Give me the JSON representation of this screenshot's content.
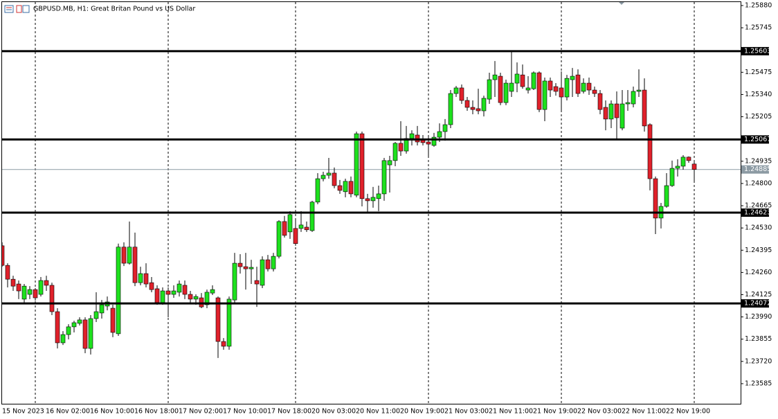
{
  "chart_data": {
    "type": "candlestick",
    "title": "GBPUSD.MB, H1:  Great Britan Pound vs US Dollar",
    "up_color": "#1ee11e",
    "down_color": "#e0212b",
    "wick_color": "#000000",
    "level_color": "#000000",
    "last_price_color": "#8c9aa3",
    "categories": [
      "15 Nov 2023",
      null,
      null,
      null,
      null,
      null,
      null,
      null,
      "16 Nov 02:00",
      null,
      null,
      null,
      null,
      null,
      null,
      null,
      "16 Nov 10:00",
      null,
      null,
      null,
      null,
      null,
      null,
      null,
      "16 Nov 18:00",
      null,
      null,
      null,
      null,
      null,
      null,
      null,
      "17 Nov 02:00",
      null,
      null,
      null,
      null,
      null,
      null,
      null,
      "17 Nov 10:00",
      null,
      null,
      null,
      null,
      null,
      null,
      null,
      "17 Nov 18:00",
      null,
      null,
      null,
      null,
      null,
      null,
      null,
      "20 Nov 03:00",
      null,
      null,
      null,
      null,
      null,
      null,
      null,
      "20 Nov 11:00",
      null,
      null,
      null,
      null,
      null,
      null,
      null,
      "20 Nov 19:00",
      null,
      null,
      null,
      null,
      null,
      null,
      null,
      "21 Nov 03:00",
      null,
      null,
      null,
      null,
      null,
      null,
      null,
      "21 Nov 11:00",
      null,
      null,
      null,
      null,
      null,
      null,
      null,
      "21 Nov 19:00",
      null,
      null,
      null,
      null,
      null,
      null,
      null,
      "22 Nov 03:00",
      null,
      null,
      null,
      null,
      null,
      null,
      null,
      "22 Nov 11:00",
      null,
      null,
      null,
      null,
      null,
      null,
      null,
      "22 Nov 19:00",
      null,
      null,
      null,
      null,
      null
    ],
    "open": [
      1.24422,
      1.24303,
      1.24219,
      1.2419,
      1.24098,
      1.24127,
      1.24156,
      1.24127,
      1.24211,
      1.24182,
      1.24022,
      1.23833,
      1.23883,
      1.2393,
      1.23951,
      1.23972,
      1.23799,
      1.2398,
      1.24014,
      1.24056,
      1.24043,
      1.23888,
      1.24414,
      1.24316,
      1.24414,
      1.24198,
      1.24253,
      1.24198,
      1.24161,
      1.24077,
      1.24148,
      1.24127,
      1.2414,
      1.24182,
      1.24127,
      1.24098,
      1.24106,
      1.24064,
      1.24135,
      1.24106,
      1.23841,
      1.23812,
      1.24093,
      1.24316,
      1.24295,
      1.24282,
      1.24211,
      1.24182,
      1.24337,
      1.24282,
      1.24358,
      1.24569,
      1.24506,
      1.24527,
      1.24527,
      1.24535,
      1.24514,
      1.24687,
      1.24829,
      1.2485,
      1.24863,
      1.24787,
      1.2475,
      1.24813,
      1.24729,
      1.25102,
      1.24708,
      1.24695,
      1.24708,
      1.24737,
      1.24913,
      1.24939,
      1.25044,
      1.24997,
      1.25073,
      1.25094,
      1.25065,
      1.25052,
      1.25031,
      1.25081,
      1.25115,
      1.25157,
      1.25346,
      1.2538,
      1.25304,
      1.25262,
      1.25254,
      1.25241,
      1.25312,
      1.2543,
      1.25451,
      1.25291,
      1.25359,
      1.25409,
      1.25459,
      1.25367,
      1.25375,
      1.25472,
      1.25249,
      1.25422,
      1.25388,
      1.2538,
      1.25325,
      1.2543,
      1.25459,
      1.25359,
      1.25409,
      1.25367,
      1.25346,
      1.25262,
      1.25191,
      1.25283,
      1.25136,
      1.25283,
      1.25283,
      1.25359,
      1.25367,
      1.25157,
      1.24829,
      1.2459,
      1.24661,
      1.24787,
      1.24892,
      1.24905,
      1.2496,
      1.24918
    ],
    "high": [
      1.24443,
      1.24316,
      1.2424,
      1.24211,
      1.2419,
      1.24177,
      1.24165,
      1.24232,
      1.2424,
      1.24198,
      1.24043,
      1.23904,
      1.23946,
      1.23967,
      1.23988,
      1.23988,
      1.24001,
      1.2414,
      1.24093,
      1.24114,
      1.24064,
      1.24435,
      1.24443,
      1.24569,
      1.24502,
      1.24295,
      1.24316,
      1.24232,
      1.24182,
      1.24169,
      1.24169,
      1.24182,
      1.24211,
      1.24211,
      1.24148,
      1.24127,
      1.24135,
      1.24156,
      1.24182,
      1.24114,
      1.23862,
      1.24114,
      1.24379,
      1.24371,
      1.24379,
      1.24337,
      1.24295,
      1.24358,
      1.24366,
      1.24379,
      1.24577,
      1.24603,
      1.24632,
      1.24577,
      1.24632,
      1.24569,
      1.24695,
      1.24863,
      1.24871,
      1.24955,
      1.24897,
      1.24821,
      1.24829,
      1.24842,
      1.25115,
      1.25115,
      1.24737,
      1.24779,
      1.24787,
      1.24955,
      1.24968,
      1.25052,
      1.25178,
      1.25149,
      1.25123,
      1.25149,
      1.25094,
      1.25081,
      1.25107,
      1.25165,
      1.25191,
      1.25367,
      1.25392,
      1.25401,
      1.25325,
      1.25304,
      1.25375,
      1.25333,
      1.25472,
      1.25543,
      1.25472,
      1.2543,
      1.25602,
      1.25535,
      1.25522,
      1.25451,
      1.2548,
      1.2548,
      1.25443,
      1.25443,
      1.25409,
      1.2548,
      1.25459,
      1.25501,
      1.25493,
      1.25438,
      1.25443,
      1.25388,
      1.25367,
      1.25304,
      1.25304,
      1.25359,
      1.25367,
      1.25367,
      1.25388,
      1.25493,
      1.25438,
      1.25165,
      1.24842,
      1.24682,
      1.24863,
      1.24939,
      1.24947,
      1.24972,
      1.24964,
      1.24939
    ],
    "low": [
      1.24295,
      1.24169,
      1.24148,
      1.24098,
      1.24077,
      1.24098,
      1.24089,
      1.24114,
      1.24148,
      1.24001,
      1.23799,
      1.2382,
      1.23854,
      1.23896,
      1.23938,
      1.2377,
      1.23762,
      1.23959,
      1.2398,
      1.2403,
      1.23867,
      1.23875,
      1.24299,
      1.24308,
      1.24177,
      1.24182,
      1.24169,
      1.2414,
      1.24064,
      1.24064,
      1.23988,
      1.24106,
      1.24114,
      1.24098,
      1.24072,
      1.24064,
      1.24043,
      1.24043,
      1.24123,
      1.23741,
      1.23791,
      1.23791,
      1.24077,
      1.24253,
      1.24156,
      1.2419,
      1.24051,
      1.24165,
      1.24266,
      1.24266,
      1.24345,
      1.24472,
      1.24464,
      1.24422,
      1.24506,
      1.24506,
      1.24506,
      1.24674,
      1.24813,
      1.24829,
      1.24771,
      1.24737,
      1.24716,
      1.24716,
      1.24716,
      1.24661,
      1.24624,
      1.24653,
      1.24632,
      1.24695,
      1.24745,
      1.24905,
      1.24968,
      1.24981,
      1.25031,
      1.25031,
      1.25031,
      1.24955,
      1.25023,
      1.25052,
      1.2506,
      1.25136,
      1.25325,
      1.25283,
      1.25241,
      1.2522,
      1.2522,
      1.25207,
      1.25283,
      1.25325,
      1.25275,
      1.25275,
      1.25325,
      1.25354,
      1.25375,
      1.25346,
      1.25367,
      1.25233,
      1.25178,
      1.25325,
      1.25333,
      1.25241,
      1.25304,
      1.25325,
      1.25325,
      1.25346,
      1.25338,
      1.25325,
      1.2522,
      1.25123,
      1.25136,
      1.25073,
      1.25123,
      1.25241,
      1.25262,
      1.25325,
      1.25115,
      1.24758,
      1.24493,
      1.24527,
      1.24653,
      1.24779,
      1.24842,
      1.24884,
      1.24926,
      1.24813
    ],
    "close": [
      1.24303,
      1.24219,
      1.24177,
      1.24148,
      1.24177,
      1.24156,
      1.24106,
      1.24211,
      1.24182,
      1.24022,
      1.23833,
      1.23883,
      1.2393,
      1.23955,
      1.23972,
      1.23799,
      1.2398,
      1.24022,
      1.24064,
      1.24081,
      1.23896,
      1.24414,
      1.24316,
      1.24414,
      1.24198,
      1.24253,
      1.2419,
      1.24156,
      1.24077,
      1.24148,
      1.24127,
      1.24148,
      1.2419,
      1.24127,
      1.24098,
      1.24114,
      1.24051,
      1.2414,
      1.24156,
      1.23841,
      1.23812,
      1.24098,
      1.24316,
      1.24295,
      1.24282,
      1.24291,
      1.2419,
      1.24337,
      1.24282,
      1.24358,
      1.24569,
      1.24485,
      1.24611,
      1.24435,
      1.24548,
      1.24519,
      1.24687,
      1.24829,
      1.2485,
      1.24863,
      1.24787,
      1.24758,
      1.24813,
      1.24737,
      1.25102,
      1.24708,
      1.24695,
      1.24716,
      1.24737,
      1.24939,
      1.24939,
      1.25044,
      1.24997,
      1.25073,
      1.25102,
      1.25052,
      1.25048,
      1.25039,
      1.25081,
      1.25115,
      1.25157,
      1.25346,
      1.2538,
      1.25304,
      1.25262,
      1.25249,
      1.25241,
      1.25317,
      1.2543,
      1.25459,
      1.25291,
      1.25409,
      1.25409,
      1.25464,
      1.25388,
      1.2538,
      1.25472,
      1.25249,
      1.25422,
      1.25367,
      1.25359,
      1.25325,
      1.25438,
      1.25451,
      1.25346,
      1.25409,
      1.25367,
      1.25346,
      1.25249,
      1.25191,
      1.25283,
      1.25199,
      1.25283,
      1.25291,
      1.25359,
      1.25367,
      1.25149,
      1.24829,
      1.2459,
      1.24661,
      1.24787,
      1.24892,
      1.24905,
      1.2496,
      1.24939,
      1.24885
    ],
    "levels": [
      1.25603,
      1.25067,
      1.24623,
      1.24072
    ],
    "last_price": 1.24885,
    "ylim": [
      1.23463,
      1.25901
    ],
    "yticks": [
      {
        "value": 1.2588,
        "label": "1.25880"
      },
      1.25745,
      1.25475,
      {
        "value": 1.2534,
        "label": "1.25340"
      },
      1.25205,
      1.24935,
      {
        "value": 1.248,
        "label": "1.24800"
      },
      1.24665,
      {
        "value": 1.2453,
        "label": "1.24530"
      },
      1.24395,
      {
        "value": 1.2426,
        "label": "1.24260"
      },
      1.24125,
      {
        "value": 1.2399,
        "label": "1.23990"
      },
      1.23855,
      {
        "value": 1.2372,
        "label": "1.23720"
      },
      1.23585
    ]
  }
}
